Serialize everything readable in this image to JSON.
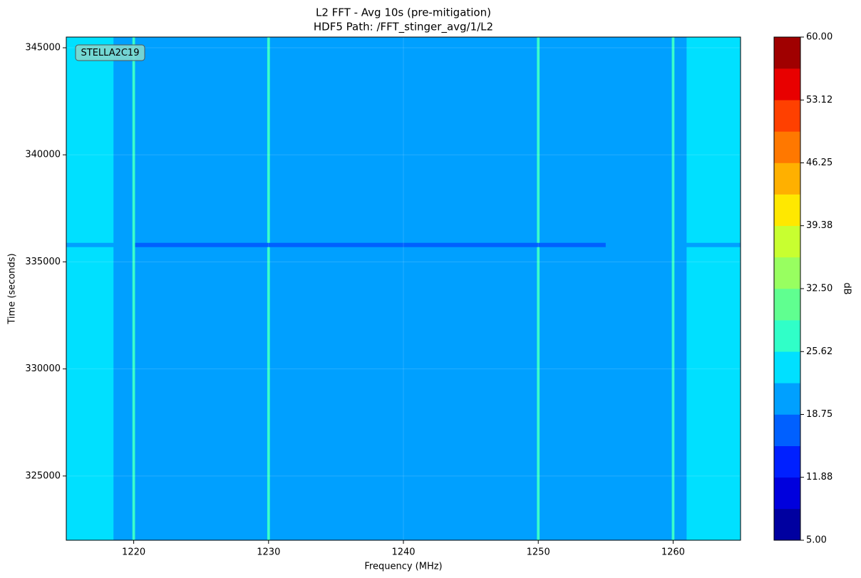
{
  "chart_data": {
    "type": "heatmap",
    "title": "L2 FFT - Avg 10s (pre-mitigation)",
    "subtitle": "HDF5 Path: /FFT_stinger_avg/1/L2",
    "x_label": "Frequency (MHz)",
    "y_label": "Time (seconds)",
    "annotation": "STELLA2C19",
    "x_edges": [
      1215,
      1218.5,
      1219.9,
      1220.1,
      1229.9,
      1230.1,
      1249.9,
      1250.1,
      1255,
      1259.9,
      1260.1,
      1261,
      1265
    ],
    "y_edges": [
      322000,
      335700,
      335900,
      345500
    ],
    "z": [
      [
        24,
        20,
        28,
        20,
        28,
        20,
        28,
        20,
        20,
        28,
        20,
        24
      ],
      [
        20,
        20,
        28,
        17,
        17,
        17,
        17,
        17,
        20,
        28,
        20,
        20
      ],
      [
        24,
        20,
        28,
        20,
        28,
        20,
        28,
        20,
        20,
        28,
        20,
        24
      ]
    ],
    "xlim": [
      1215,
      1265
    ],
    "ylim": [
      322000,
      345500
    ],
    "xticks": [
      1220,
      1230,
      1240,
      1250,
      1260
    ],
    "yticks": [
      325000,
      330000,
      335000,
      340000,
      345000
    ],
    "grid": true,
    "colorbar": {
      "label": "dB",
      "clim": [
        5,
        60
      ],
      "levels": 16,
      "colors": [
        "#0000a0",
        "#0000dd",
        "#0020ff",
        "#0060ff",
        "#00a0ff",
        "#00e0ff",
        "#30ffc8",
        "#60ff90",
        "#98ff60",
        "#c8ff30",
        "#ffe800",
        "#ffb000",
        "#ff7800",
        "#ff4000",
        "#e80000",
        "#a00000"
      ],
      "ticks": [
        {
          "value": 5,
          "label": "5.00"
        },
        {
          "value": 11.88,
          "label": "11.88"
        },
        {
          "value": 18.75,
          "label": "18.75"
        },
        {
          "value": 25.62,
          "label": "25.62"
        },
        {
          "value": 32.5,
          "label": "32.50"
        },
        {
          "value": 39.38,
          "label": "39.38"
        },
        {
          "value": 46.25,
          "label": "46.25"
        },
        {
          "value": 53.12,
          "label": "53.12"
        },
        {
          "value": 60,
          "label": "60.00"
        }
      ]
    }
  }
}
